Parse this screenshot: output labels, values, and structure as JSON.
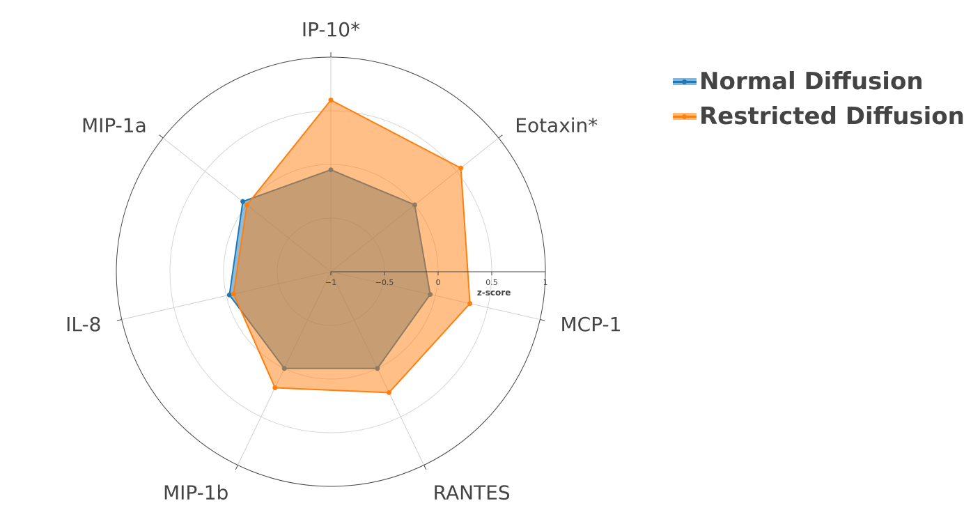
{
  "chart_data": {
    "type": "radar",
    "categories": [
      "IP-10*",
      "Eotaxin*",
      "MCP-1",
      "RANTES",
      "MIP-1b",
      "IL-8",
      "MIP-1a"
    ],
    "radial_axis": {
      "range": [
        -1,
        1
      ],
      "ticks": [
        -1,
        -0.5,
        0,
        0.5,
        1
      ],
      "tick_labels": [
        "−1",
        "−0.5",
        "0",
        "0.5",
        "1"
      ],
      "title": "z-score"
    },
    "series": [
      {
        "name": "Normal Diffusion",
        "color": "#1f77b4",
        "values": [
          -0.05,
          0.0,
          -0.05,
          0.0,
          0.0,
          -0.03,
          0.05
        ]
      },
      {
        "name": "Restricted Diffusion",
        "color": "#ff7f0e",
        "values": [
          0.6,
          0.55,
          0.33,
          0.25,
          0.2,
          -0.07,
          0.0
        ]
      }
    ],
    "grid": true,
    "legend_position": "top-right"
  }
}
